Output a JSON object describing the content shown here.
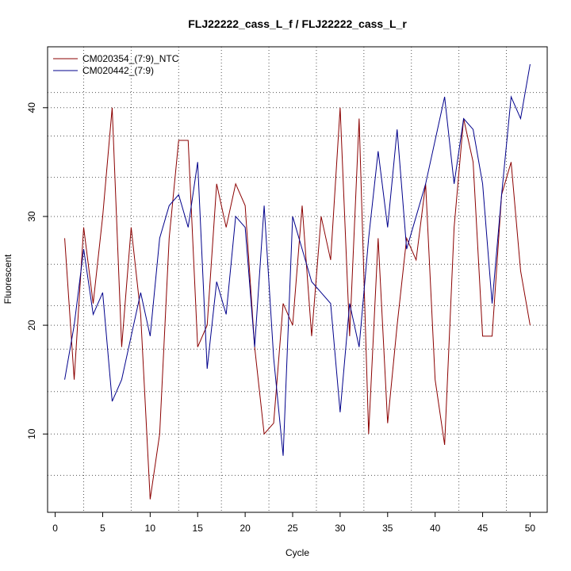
{
  "chart_data": {
    "type": "line",
    "title": "FLJ22222_cass_L_f / FLJ22222_cass_L_r",
    "xlabel": "Cycle",
    "ylabel": "Fluorescent",
    "xlim": [
      -0.8,
      51.8
    ],
    "ylim": [
      2.8,
      45.6
    ],
    "x_ticks": [
      0,
      5,
      10,
      15,
      20,
      25,
      30,
      35,
      40,
      45,
      50
    ],
    "y_ticks": [
      10,
      20,
      30,
      40
    ],
    "x_ticks_labels": [
      "0",
      "5",
      "10",
      "15",
      "20",
      "25",
      "30",
      "35",
      "40",
      "45",
      "50"
    ],
    "y_ticks_labels": [
      "10",
      "20",
      "30",
      "40"
    ],
    "x_grid": [
      3,
      8,
      13,
      17.5,
      22.5,
      27.5,
      32.5,
      37.5,
      42.5,
      47.5
    ],
    "y_grid": [
      6.2,
      10,
      13.9,
      17.8,
      20,
      21.8,
      25.6,
      30,
      33.6,
      37.4,
      40,
      41.4
    ],
    "legend_position": "top-left",
    "series": [
      {
        "name": "CM020354_(7:9)_NTC",
        "color": "#8b0000",
        "x": [
          1,
          2,
          3,
          4,
          5,
          6,
          7,
          8,
          9,
          10,
          11,
          12,
          13,
          14,
          15,
          16,
          17,
          18,
          19,
          20,
          21,
          22,
          23,
          24,
          25,
          26,
          27,
          28,
          29,
          30,
          31,
          32,
          33,
          34,
          35,
          36,
          37,
          38,
          39,
          40,
          41,
          42,
          43,
          44,
          45,
          46,
          47,
          48,
          49,
          50
        ],
        "values": [
          28,
          15,
          29,
          22,
          30,
          40,
          18,
          29,
          21,
          4,
          10,
          28,
          37,
          37,
          18,
          20,
          33,
          29,
          33,
          31,
          18,
          10,
          11,
          22,
          20,
          31,
          19,
          30,
          26,
          40,
          19,
          39,
          10,
          28,
          11,
          20,
          28,
          26,
          33,
          15,
          9,
          29,
          39,
          35,
          19,
          19,
          32,
          35,
          25,
          20
        ]
      },
      {
        "name": "CM020442_(7:9)",
        "color": "#00008b",
        "x": [
          1,
          2,
          3,
          4,
          5,
          6,
          7,
          8,
          9,
          10,
          11,
          12,
          13,
          14,
          15,
          16,
          17,
          18,
          19,
          20,
          21,
          22,
          23,
          24,
          25,
          26,
          27,
          28,
          29,
          30,
          31,
          32,
          33,
          34,
          35,
          36,
          37,
          38,
          39,
          40,
          41,
          42,
          43,
          44,
          45,
          46,
          47,
          48,
          49,
          50
        ],
        "values": [
          15,
          20,
          27,
          21,
          23,
          13,
          15,
          19,
          23,
          19,
          28,
          31,
          32,
          29,
          35,
          16,
          24,
          21,
          30,
          29,
          18,
          31,
          17,
          8,
          30,
          27,
          24,
          23,
          22,
          12,
          22,
          18,
          28,
          36,
          29,
          38,
          27,
          30,
          33,
          37,
          41,
          33,
          39,
          38,
          33,
          22,
          32,
          41,
          39,
          44
        ]
      }
    ]
  }
}
